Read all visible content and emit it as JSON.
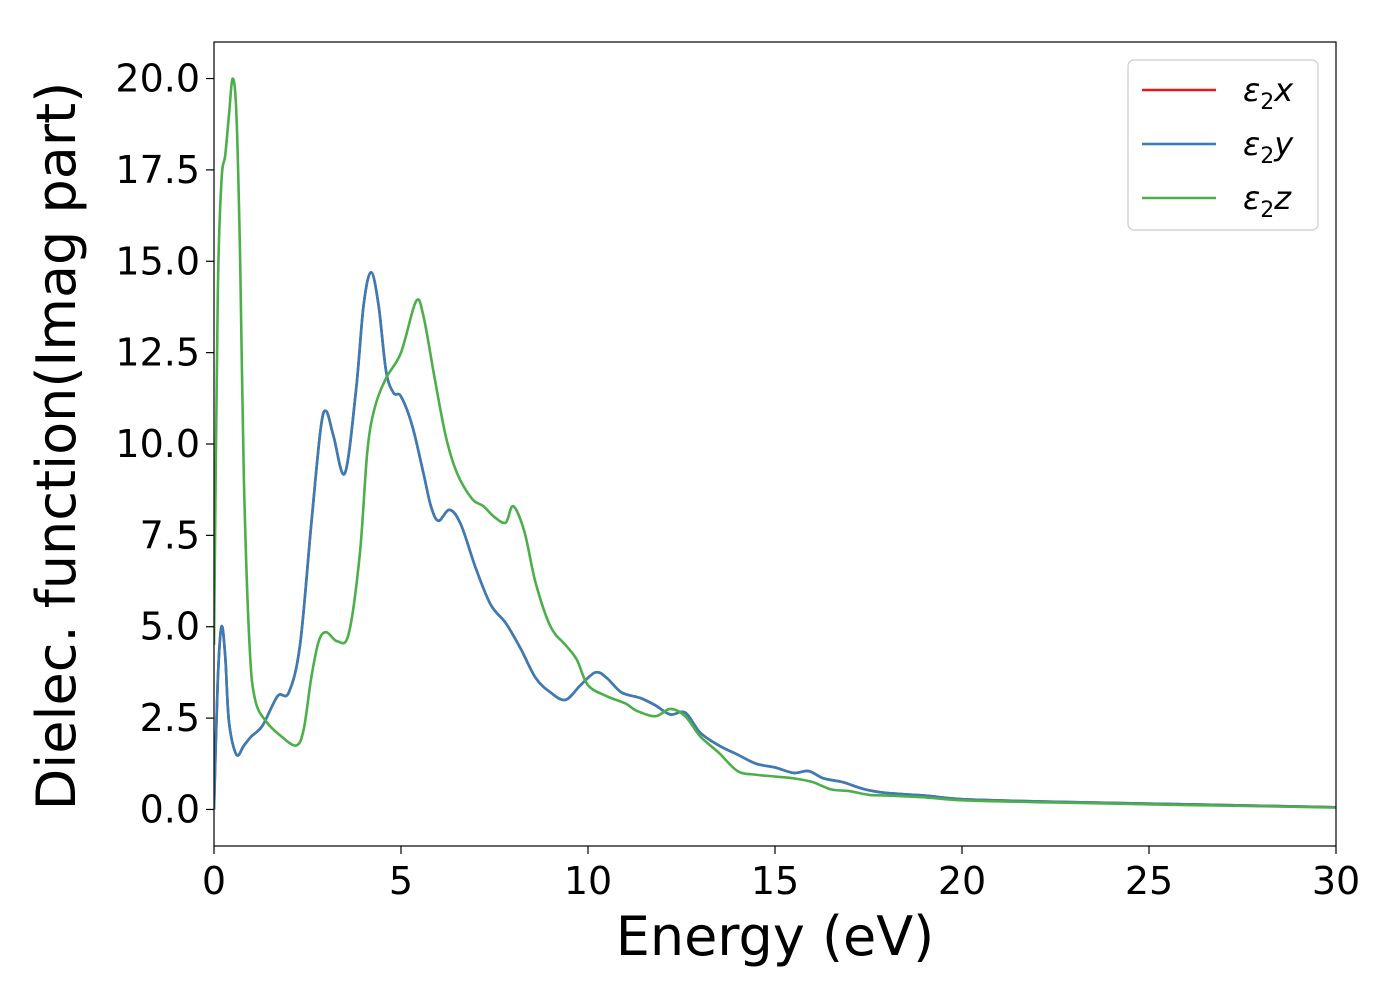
{
  "chart_data": {
    "type": "line",
    "title": "",
    "xlabel": "Energy (eV)",
    "ylabel": "Dielec. function(Imag part)",
    "xlim": [
      0,
      30
    ],
    "ylim": [
      -1.0,
      21.0
    ],
    "xticks": [
      0,
      5,
      10,
      15,
      20,
      25,
      30
    ],
    "yticks": [
      0.0,
      2.5,
      5.0,
      7.5,
      10.0,
      12.5,
      15.0,
      17.5,
      20.0
    ],
    "xtick_labels": [
      "0",
      "5",
      "10",
      "15",
      "20",
      "25",
      "30"
    ],
    "ytick_labels": [
      "0.0",
      "2.5",
      "5.0",
      "7.5",
      "10.0",
      "12.5",
      "15.0",
      "17.5",
      "20.0"
    ],
    "grid": false,
    "legend_position": "top-right",
    "series": [
      {
        "name": "ε2x",
        "color": "#e41a1c",
        "points": [
          [
            0,
            0.0
          ],
          [
            0.1,
            3.5
          ],
          [
            0.2,
            5.0
          ],
          [
            0.3,
            4.2
          ],
          [
            0.4,
            2.4
          ],
          [
            0.6,
            1.5
          ],
          [
            0.8,
            1.75
          ],
          [
            1.0,
            2.0
          ],
          [
            1.3,
            2.3
          ],
          [
            1.7,
            3.1
          ],
          [
            2.0,
            3.2
          ],
          [
            2.3,
            4.5
          ],
          [
            2.6,
            7.8
          ],
          [
            2.85,
            10.4
          ],
          [
            3.0,
            10.9
          ],
          [
            3.2,
            10.2
          ],
          [
            3.5,
            9.2
          ],
          [
            3.8,
            11.5
          ],
          [
            4.0,
            13.8
          ],
          [
            4.2,
            14.7
          ],
          [
            4.4,
            13.8
          ],
          [
            4.6,
            12.0
          ],
          [
            4.8,
            11.4
          ],
          [
            5.0,
            11.3
          ],
          [
            5.3,
            10.5
          ],
          [
            5.6,
            9.2
          ],
          [
            5.8,
            8.3
          ],
          [
            6.0,
            7.9
          ],
          [
            6.3,
            8.2
          ],
          [
            6.6,
            7.8
          ],
          [
            7.0,
            6.6
          ],
          [
            7.4,
            5.6
          ],
          [
            7.8,
            5.1
          ],
          [
            8.2,
            4.4
          ],
          [
            8.6,
            3.6
          ],
          [
            9.0,
            3.2
          ],
          [
            9.4,
            3.0
          ],
          [
            9.8,
            3.4
          ],
          [
            10.2,
            3.75
          ],
          [
            10.5,
            3.6
          ],
          [
            10.9,
            3.2
          ],
          [
            11.4,
            3.05
          ],
          [
            11.8,
            2.85
          ],
          [
            12.2,
            2.6
          ],
          [
            12.6,
            2.65
          ],
          [
            13.0,
            2.1
          ],
          [
            13.5,
            1.75
          ],
          [
            14.0,
            1.5
          ],
          [
            14.5,
            1.25
          ],
          [
            15.0,
            1.15
          ],
          [
            15.5,
            1.0
          ],
          [
            15.9,
            1.05
          ],
          [
            16.3,
            0.85
          ],
          [
            16.8,
            0.75
          ],
          [
            17.4,
            0.55
          ],
          [
            18.0,
            0.45
          ],
          [
            19.0,
            0.38
          ],
          [
            20.0,
            0.28
          ],
          [
            22.0,
            0.22
          ],
          [
            24.0,
            0.18
          ],
          [
            26.0,
            0.14
          ],
          [
            28.0,
            0.1
          ],
          [
            30.0,
            0.06
          ]
        ]
      },
      {
        "name": "ε2y",
        "color": "#377eb8",
        "points": [
          [
            0,
            0.0
          ],
          [
            0.1,
            3.5
          ],
          [
            0.2,
            5.0
          ],
          [
            0.3,
            4.2
          ],
          [
            0.4,
            2.4
          ],
          [
            0.6,
            1.5
          ],
          [
            0.8,
            1.75
          ],
          [
            1.0,
            2.0
          ],
          [
            1.3,
            2.3
          ],
          [
            1.7,
            3.1
          ],
          [
            2.0,
            3.2
          ],
          [
            2.3,
            4.5
          ],
          [
            2.6,
            7.8
          ],
          [
            2.85,
            10.4
          ],
          [
            3.0,
            10.9
          ],
          [
            3.2,
            10.2
          ],
          [
            3.5,
            9.2
          ],
          [
            3.8,
            11.5
          ],
          [
            4.0,
            13.8
          ],
          [
            4.2,
            14.7
          ],
          [
            4.4,
            13.8
          ],
          [
            4.6,
            12.0
          ],
          [
            4.8,
            11.4
          ],
          [
            5.0,
            11.3
          ],
          [
            5.3,
            10.5
          ],
          [
            5.6,
            9.2
          ],
          [
            5.8,
            8.3
          ],
          [
            6.0,
            7.9
          ],
          [
            6.3,
            8.2
          ],
          [
            6.6,
            7.8
          ],
          [
            7.0,
            6.6
          ],
          [
            7.4,
            5.6
          ],
          [
            7.8,
            5.1
          ],
          [
            8.2,
            4.4
          ],
          [
            8.6,
            3.6
          ],
          [
            9.0,
            3.2
          ],
          [
            9.4,
            3.0
          ],
          [
            9.8,
            3.4
          ],
          [
            10.2,
            3.75
          ],
          [
            10.5,
            3.6
          ],
          [
            10.9,
            3.2
          ],
          [
            11.4,
            3.05
          ],
          [
            11.8,
            2.85
          ],
          [
            12.2,
            2.6
          ],
          [
            12.6,
            2.65
          ],
          [
            13.0,
            2.1
          ],
          [
            13.5,
            1.75
          ],
          [
            14.0,
            1.5
          ],
          [
            14.5,
            1.25
          ],
          [
            15.0,
            1.15
          ],
          [
            15.5,
            1.0
          ],
          [
            15.9,
            1.05
          ],
          [
            16.3,
            0.85
          ],
          [
            16.8,
            0.75
          ],
          [
            17.4,
            0.55
          ],
          [
            18.0,
            0.45
          ],
          [
            19.0,
            0.38
          ],
          [
            20.0,
            0.28
          ],
          [
            22.0,
            0.22
          ],
          [
            24.0,
            0.18
          ],
          [
            26.0,
            0.14
          ],
          [
            28.0,
            0.1
          ],
          [
            30.0,
            0.06
          ]
        ]
      },
      {
        "name": "ε2z",
        "color": "#4daf4a",
        "points": [
          [
            0,
            4.5
          ],
          [
            0.1,
            14.0
          ],
          [
            0.2,
            17.2
          ],
          [
            0.3,
            17.9
          ],
          [
            0.4,
            19.0
          ],
          [
            0.5,
            20.0
          ],
          [
            0.6,
            19.0
          ],
          [
            0.7,
            15.0
          ],
          [
            0.8,
            9.0
          ],
          [
            0.95,
            4.5
          ],
          [
            1.1,
            3.0
          ],
          [
            1.4,
            2.4
          ],
          [
            1.8,
            2.0
          ],
          [
            2.2,
            1.75
          ],
          [
            2.4,
            2.2
          ],
          [
            2.6,
            3.6
          ],
          [
            2.8,
            4.6
          ],
          [
            3.0,
            4.85
          ],
          [
            3.3,
            4.6
          ],
          [
            3.6,
            4.8
          ],
          [
            3.9,
            7.0
          ],
          [
            4.1,
            9.8
          ],
          [
            4.3,
            11.0
          ],
          [
            4.6,
            11.8
          ],
          [
            5.0,
            12.5
          ],
          [
            5.4,
            13.9
          ],
          [
            5.6,
            13.5
          ],
          [
            5.9,
            11.8
          ],
          [
            6.2,
            10.2
          ],
          [
            6.5,
            9.2
          ],
          [
            6.9,
            8.5
          ],
          [
            7.2,
            8.3
          ],
          [
            7.5,
            8.0
          ],
          [
            7.8,
            7.85
          ],
          [
            8.0,
            8.3
          ],
          [
            8.3,
            7.6
          ],
          [
            8.6,
            6.2
          ],
          [
            9.0,
            5.0
          ],
          [
            9.4,
            4.5
          ],
          [
            9.7,
            4.1
          ],
          [
            10.0,
            3.4
          ],
          [
            10.5,
            3.1
          ],
          [
            11.0,
            2.9
          ],
          [
            11.3,
            2.7
          ],
          [
            11.8,
            2.55
          ],
          [
            12.2,
            2.75
          ],
          [
            12.6,
            2.55
          ],
          [
            13.0,
            2.0
          ],
          [
            13.5,
            1.55
          ],
          [
            14.0,
            1.05
          ],
          [
            14.5,
            0.95
          ],
          [
            15.0,
            0.9
          ],
          [
            15.5,
            0.85
          ],
          [
            16.0,
            0.75
          ],
          [
            16.5,
            0.55
          ],
          [
            17.0,
            0.5
          ],
          [
            17.5,
            0.4
          ],
          [
            18.0,
            0.38
          ],
          [
            19.0,
            0.33
          ],
          [
            20.0,
            0.25
          ],
          [
            22.0,
            0.2
          ],
          [
            24.0,
            0.16
          ],
          [
            26.0,
            0.12
          ],
          [
            28.0,
            0.09
          ],
          [
            30.0,
            0.05
          ]
        ]
      }
    ]
  },
  "legend": {
    "entries": [
      {
        "symbol": "ε",
        "sub": "2",
        "axis": "x"
      },
      {
        "symbol": "ε",
        "sub": "2",
        "axis": "y"
      },
      {
        "symbol": "ε",
        "sub": "2",
        "axis": "z"
      }
    ]
  }
}
